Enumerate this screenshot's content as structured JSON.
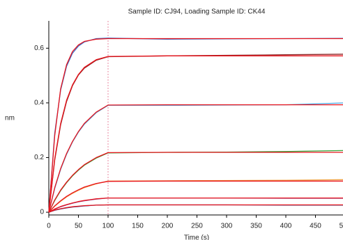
{
  "chart_data": {
    "type": "line",
    "title": "Sample ID: CJ94, Loading Sample ID: CK44",
    "x_label": "Time (s)",
    "y_label": "nm",
    "x": [
      0,
      10,
      20,
      30,
      40,
      50,
      60,
      80,
      100,
      200,
      300,
      400,
      500
    ],
    "xlim": [
      0,
      500
    ],
    "xticks": [
      0,
      50,
      100,
      150,
      200,
      250,
      300,
      350,
      400,
      450,
      500
    ],
    "ylim": [
      -0.01,
      0.7
    ],
    "yticks": [
      0,
      0.2,
      0.4,
      0.6
    ],
    "vline": 100,
    "vline_color": "#e88aa0",
    "series": [
      {
        "color": "#3b6fc9",
        "values": [
          0,
          0.289,
          0.447,
          0.534,
          0.582,
          0.608,
          0.623,
          0.635,
          0.637,
          0.633,
          0.634,
          0.635,
          0.636
        ]
      },
      {
        "color": "#8b2323",
        "values": [
          0,
          0.191,
          0.32,
          0.405,
          0.463,
          0.502,
          0.527,
          0.556,
          0.569,
          0.572,
          0.574,
          0.576,
          0.578
        ]
      },
      {
        "color": "#4aa3df",
        "values": [
          0,
          0.087,
          0.157,
          0.212,
          0.257,
          0.293,
          0.322,
          0.364,
          0.391,
          0.391,
          0.392,
          0.393,
          0.4
        ]
      },
      {
        "color": "#3aa33a",
        "values": [
          0,
          0.043,
          0.079,
          0.108,
          0.133,
          0.154,
          0.172,
          0.198,
          0.217,
          0.219,
          0.22,
          0.222,
          0.226
        ]
      },
      {
        "color": "#f0a040",
        "values": [
          0,
          0.022,
          0.04,
          0.056,
          0.069,
          0.08,
          0.09,
          0.104,
          0.114,
          0.115,
          0.116,
          0.117,
          0.119
        ]
      },
      {
        "color": "#7a3a9a",
        "values": [
          0,
          0.011,
          0.02,
          0.027,
          0.033,
          0.038,
          0.042,
          0.048,
          0.052,
          0.052,
          0.052,
          0.051,
          0.051
        ]
      },
      {
        "color": "#1f3a8a",
        "values": [
          0,
          0.007,
          0.012,
          0.016,
          0.019,
          0.021,
          0.023,
          0.026,
          0.027,
          0.027,
          0.027,
          0.026,
          0.026
        ]
      },
      {
        "color": "#e8141c",
        "values": [
          0,
          0.28,
          0.452,
          0.54,
          0.588,
          0.612,
          0.625,
          0.633,
          0.635,
          0.635,
          0.635,
          0.635,
          0.635
        ]
      },
      {
        "color": "#e8141c",
        "values": [
          0,
          0.196,
          0.325,
          0.41,
          0.466,
          0.504,
          0.53,
          0.558,
          0.57,
          0.572,
          0.572,
          0.572,
          0.572
        ]
      },
      {
        "color": "#e8141c",
        "values": [
          0,
          0.09,
          0.16,
          0.215,
          0.259,
          0.295,
          0.325,
          0.366,
          0.392,
          0.393,
          0.393,
          0.393,
          0.393
        ]
      },
      {
        "color": "#e8141c",
        "values": [
          0,
          0.045,
          0.081,
          0.11,
          0.135,
          0.156,
          0.174,
          0.2,
          0.218,
          0.219,
          0.219,
          0.219,
          0.219
        ]
      },
      {
        "color": "#e8141c",
        "values": [
          0,
          0.023,
          0.042,
          0.058,
          0.071,
          0.082,
          0.092,
          0.105,
          0.113,
          0.114,
          0.114,
          0.114,
          0.114
        ]
      },
      {
        "color": "#e8141c",
        "values": [
          0,
          0.012,
          0.021,
          0.028,
          0.034,
          0.039,
          0.043,
          0.049,
          0.052,
          0.052,
          0.052,
          0.052,
          0.052
        ]
      },
      {
        "color": "#e8141c",
        "values": [
          0,
          0.008,
          0.013,
          0.017,
          0.02,
          0.022,
          0.024,
          0.026,
          0.027,
          0.027,
          0.027,
          0.027,
          0.027
        ]
      }
    ]
  }
}
